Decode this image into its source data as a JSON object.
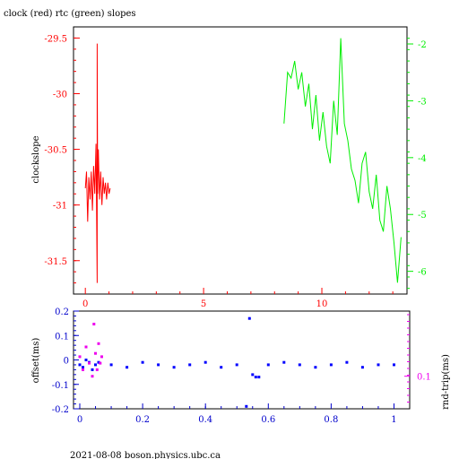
{
  "header": {
    "title": "clock (red) rtc (green) slopes",
    "footer": "2021-08-08  boson.physics.ubc.ca"
  },
  "colors": {
    "clock": "#ff0000",
    "rtc": "#00ee00",
    "offset": "#0000ff",
    "roundtrip": "#ee00ee",
    "axis_bottom": "#0000cc"
  },
  "chart_data": [
    {
      "type": "line",
      "title": "clock (red) rtc (green) slopes",
      "ylabel": "clockslope",
      "xlim": [
        -0.5,
        13.6
      ],
      "ylim": [
        -31.8,
        -29.4
      ],
      "y2lim": [
        -6.4,
        -1.7
      ],
      "xticks": [
        "0",
        "5",
        "10"
      ],
      "yticks": [
        "-29.5",
        "-30",
        "-30.5",
        "-31",
        "-31.5"
      ],
      "y2ticks": [
        "-2",
        "-3",
        "-4",
        "-5",
        "-6"
      ],
      "series": [
        {
          "name": "clock (red)",
          "axis": "left",
          "x": [
            0.0,
            0.05,
            0.1,
            0.15,
            0.2,
            0.25,
            0.3,
            0.35,
            0.4,
            0.45,
            0.5,
            0.5,
            0.52,
            0.55,
            0.6,
            0.65,
            0.7,
            0.75,
            0.8,
            0.85,
            0.9,
            0.95,
            1.0,
            1.05
          ],
          "y": [
            -30.85,
            -30.7,
            -31.15,
            -30.75,
            -30.95,
            -30.7,
            -31.05,
            -30.65,
            -30.9,
            -30.45,
            -31.7,
            -29.55,
            -30.9,
            -30.5,
            -30.95,
            -30.7,
            -31.0,
            -30.75,
            -30.9,
            -30.8,
            -30.95,
            -30.8,
            -30.9,
            -30.85
          ]
        },
        {
          "name": "rtc (green)",
          "axis": "right",
          "x": [
            8.4,
            8.55,
            8.7,
            8.85,
            9.0,
            9.15,
            9.3,
            9.45,
            9.6,
            9.75,
            9.9,
            10.05,
            10.2,
            10.35,
            10.5,
            10.65,
            10.8,
            10.95,
            11.1,
            11.25,
            11.4,
            11.55,
            11.7,
            11.85,
            12.0,
            12.15,
            12.3,
            12.45,
            12.6,
            12.75,
            12.9,
            13.05,
            13.2,
            13.35
          ],
          "y": [
            -3.4,
            -2.5,
            -2.6,
            -2.3,
            -2.8,
            -2.5,
            -3.1,
            -2.7,
            -3.5,
            -2.9,
            -3.7,
            -3.2,
            -3.8,
            -4.1,
            -3.0,
            -3.6,
            -1.9,
            -3.4,
            -3.7,
            -4.2,
            -4.4,
            -4.8,
            -4.1,
            -3.9,
            -4.6,
            -4.9,
            -4.3,
            -5.1,
            -5.3,
            -4.5,
            -4.9,
            -5.5,
            -6.2,
            -5.4
          ]
        }
      ]
    },
    {
      "type": "scatter",
      "ylabel": "offset(ms)",
      "y2label": "rnd-trip(ms)",
      "xlim": [
        -0.02,
        1.05
      ],
      "ylim": [
        -0.2,
        0.2
      ],
      "xticks": [
        "0",
        "0.2",
        "0.4",
        "0.6",
        "0.8",
        "1"
      ],
      "yticks": [
        "0.2",
        "0.1",
        "0",
        "-0.1",
        "-0.2"
      ],
      "y2ticks": [
        "0.1"
      ],
      "series": [
        {
          "name": "offset(ms)",
          "axis": "left",
          "x": [
            0.0,
            0.01,
            0.02,
            0.03,
            0.04,
            0.05,
            0.06,
            0.1,
            0.15,
            0.2,
            0.25,
            0.3,
            0.35,
            0.4,
            0.45,
            0.5,
            0.53,
            0.54,
            0.55,
            0.56,
            0.57,
            0.6,
            0.65,
            0.7,
            0.75,
            0.8,
            0.85,
            0.9,
            0.95,
            1.0
          ],
          "y": [
            -0.02,
            -0.03,
            0.0,
            -0.01,
            -0.04,
            -0.02,
            -0.01,
            -0.02,
            -0.03,
            -0.01,
            -0.02,
            -0.03,
            -0.02,
            -0.01,
            -0.03,
            -0.02,
            -0.19,
            0.17,
            -0.06,
            -0.07,
            -0.07,
            -0.02,
            -0.01,
            -0.02,
            -0.03,
            -0.02,
            -0.01,
            -0.03,
            -0.02,
            -0.02
          ]
        },
        {
          "name": "rnd-trip(ms)",
          "axis": "right",
          "x": [
            0.0,
            0.01,
            0.02,
            0.03,
            0.04,
            0.045,
            0.05,
            0.055,
            0.06,
            0.065,
            0.07
          ],
          "y": [
            0.13,
            0.11,
            0.145,
            0.12,
            0.1,
            0.18,
            0.135,
            0.11,
            0.15,
            0.12,
            0.13
          ]
        }
      ]
    }
  ]
}
